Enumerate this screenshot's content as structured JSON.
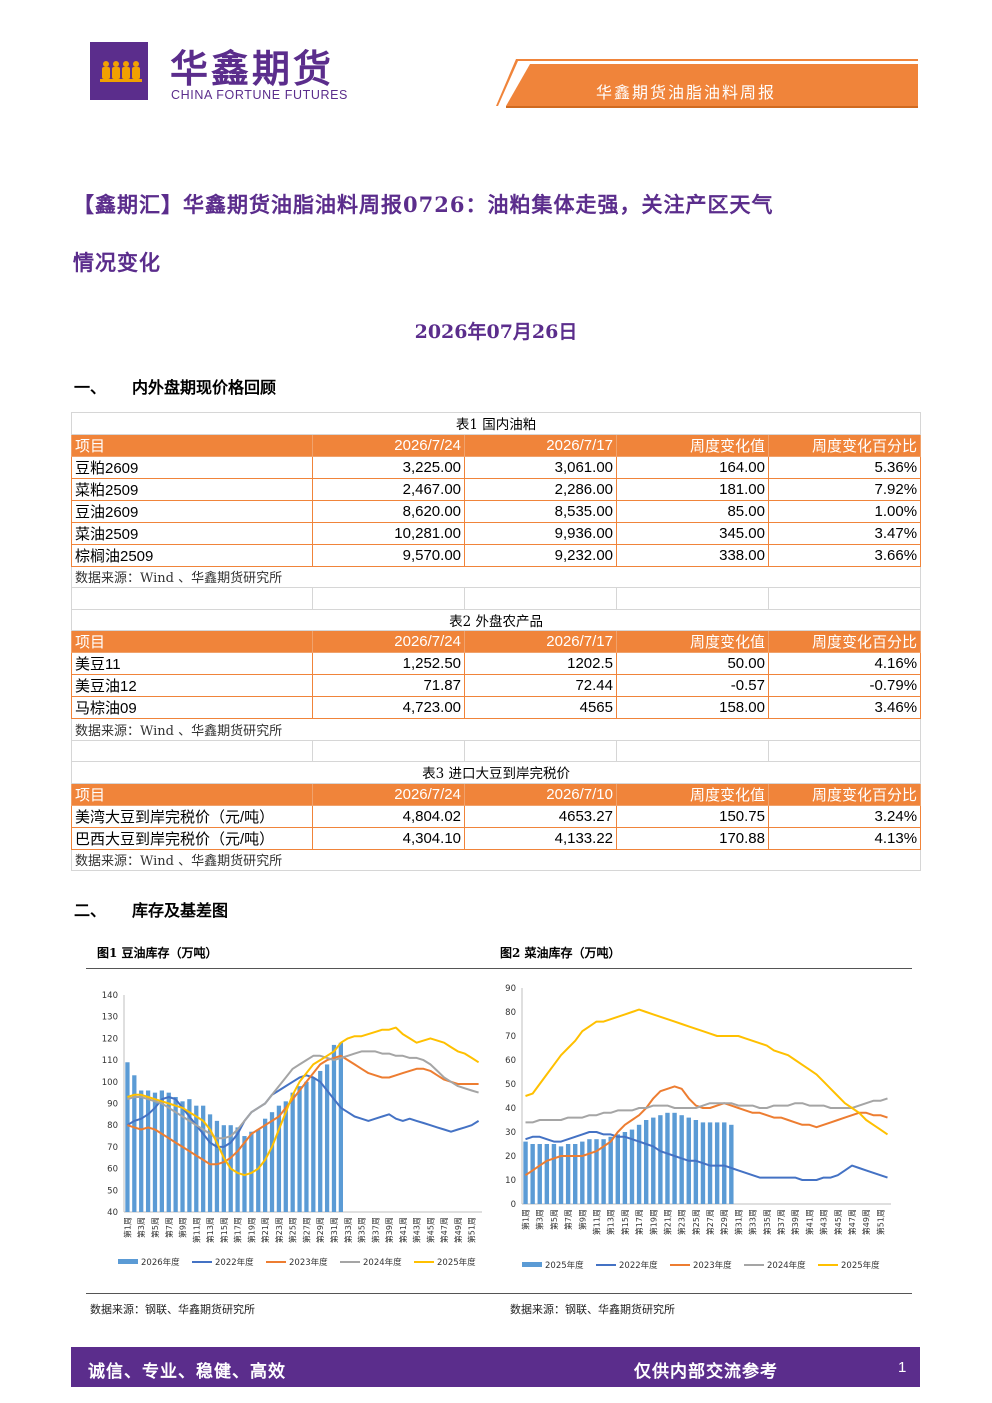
{
  "header": {
    "logo_cn": "华鑫期货",
    "logo_en": "CHINA FORTUNE FUTURES",
    "report_name": "华鑫期货油脂油料周报",
    "brand_color": "#5b2d8c",
    "accent_color": "#f0843a"
  },
  "title": {
    "line1": "【鑫期汇】华鑫期货油脂油料周报0726：油粕集体走强，关注产区天气",
    "line2": "情况变化",
    "date": "2026年07月26日"
  },
  "sections": {
    "s1": {
      "num": "一、",
      "text": "内外盘期现价格回顾"
    },
    "s2": {
      "num": "二、",
      "text": "库存及基差图"
    }
  },
  "tables": [
    {
      "caption": "表1  国内油粕",
      "headers": [
        "项目",
        "2026/7/24",
        "2026/7/17",
        "周度变化值",
        "周度变化百分比"
      ],
      "rows": [
        [
          "豆粕2609",
          "3,225.00",
          "3,061.00",
          "164.00",
          "5.36%"
        ],
        [
          "菜粕2509",
          "2,467.00",
          "2,286.00",
          "181.00",
          "7.92%"
        ],
        [
          "豆油2609",
          "8,620.00",
          "8,535.00",
          "85.00",
          "1.00%"
        ],
        [
          "菜油2509",
          "10,281.00",
          "9,936.00",
          "345.00",
          "3.47%"
        ],
        [
          "棕榈油2509",
          "9,570.00",
          "9,232.00",
          "338.00",
          "3.66%"
        ]
      ],
      "source": "数据来源：Wind 、华鑫期货研究所"
    },
    {
      "caption": "表2  外盘农产品",
      "headers": [
        "项目",
        "2026/7/24",
        "2026/7/17",
        "周度变化值",
        "周度变化百分比"
      ],
      "rows": [
        [
          "美豆11",
          "1,252.50",
          "1202.5",
          "50.00",
          "4.16%"
        ],
        [
          "美豆油12",
          "71.87",
          "72.44",
          "-0.57",
          "-0.79%"
        ],
        [
          "马棕油09",
          "4,723.00",
          "4565",
          "158.00",
          "3.46%"
        ]
      ],
      "source": "数据来源：Wind 、华鑫期货研究所"
    },
    {
      "caption": "表3  进口大豆到岸完税价",
      "headers": [
        "项目",
        "2026/7/24",
        "2026/7/10",
        "周度变化值",
        "周度变化百分比"
      ],
      "rows": [
        [
          "美湾大豆到岸完税价（元/吨）",
          "4,804.02",
          "4653.27",
          "150.75",
          "3.24%"
        ],
        [
          "巴西大豆到岸完税价（元/吨）",
          "4,304.10",
          "4,133.22",
          "170.88",
          "4.13%"
        ]
      ],
      "source": "数据来源：Wind 、华鑫期货研究所"
    }
  ],
  "figures": [
    {
      "title": "图1  豆油库存（万吨）",
      "source": "数据来源：钢联、华鑫期货研究所"
    },
    {
      "title": "图2  菜油库存（万吨）",
      "source": "数据来源：钢联、华鑫期货研究所"
    }
  ],
  "chart_data": [
    {
      "type": "line",
      "title": "图1  豆油库存（万吨）",
      "ylim": [
        40,
        140
      ],
      "yticks": [
        40,
        50,
        60,
        70,
        80,
        90,
        100,
        110,
        120,
        130,
        140
      ],
      "ytick_labels": [
        "40",
        "50",
        "60",
        "70",
        "80",
        "90",
        "100",
        "110",
        "120",
        "130",
        "140"
      ],
      "x_labels": [
        "第1周",
        "第3周",
        "第5周",
        "第7周",
        "第9周",
        "第11周",
        "第13周",
        "第15周",
        "第17周",
        "第19周",
        "第21周",
        "第23周",
        "第25周",
        "第27周",
        "第29周",
        "第31周",
        "第33周",
        "第35周",
        "第37周",
        "第39周",
        "第41周",
        "第43周",
        "第45周",
        "第47周",
        "第49周",
        "第51周"
      ],
      "weeks": 52,
      "legend_position": "bottom",
      "bar_series": {
        "name": "2026年度",
        "color": "#5b9bd5",
        "values": [
          109,
          103,
          96,
          96,
          95,
          96,
          95,
          93,
          91,
          92,
          89,
          89,
          85,
          82,
          80,
          80,
          79,
          75,
          77,
          78,
          83,
          86,
          89,
          91,
          95,
          98,
          100,
          102,
          105,
          108,
          117,
          118
        ]
      },
      "series": [
        {
          "name": "2022年度",
          "color": "#4472c4",
          "values": [
            80,
            82,
            83,
            85,
            88,
            92,
            93,
            92,
            88,
            84,
            80,
            76,
            72,
            70,
            70,
            72,
            76,
            82,
            86,
            88,
            90,
            94,
            96,
            98,
            100,
            102,
            103,
            102,
            100,
            96,
            92,
            88,
            86,
            84,
            83,
            82,
            83,
            84,
            85,
            83,
            82,
            83,
            82,
            81,
            80,
            79,
            78,
            77,
            78,
            79,
            80,
            82
          ]
        },
        {
          "name": "2023年度",
          "color": "#ed7d31",
          "values": [
            80,
            79,
            78,
            79,
            78,
            76,
            74,
            72,
            70,
            68,
            66,
            64,
            62,
            62,
            63,
            65,
            68,
            72,
            76,
            78,
            80,
            82,
            84,
            88,
            92,
            96,
            100,
            104,
            108,
            110,
            111,
            112,
            110,
            108,
            106,
            104,
            103,
            102,
            102,
            103,
            104,
            105,
            106,
            106,
            105,
            103,
            101,
            100,
            99,
            99,
            99,
            99
          ]
        },
        {
          "name": "2024年度",
          "color": "#a5a5a5",
          "values": [
            92,
            93,
            93,
            92,
            91,
            90,
            88,
            86,
            84,
            82,
            80,
            78,
            76,
            74,
            74,
            75,
            78,
            82,
            86,
            88,
            90,
            94,
            98,
            102,
            106,
            108,
            110,
            112,
            112,
            111,
            110,
            111,
            112,
            113,
            114,
            114,
            114,
            113,
            113,
            112,
            112,
            111,
            111,
            110,
            108,
            105,
            102,
            100,
            98,
            97,
            96,
            95
          ]
        },
        {
          "name": "2025年度",
          "color": "#ffc000",
          "values": [
            93,
            94,
            94,
            93,
            92,
            91,
            90,
            89,
            88,
            86,
            84,
            82,
            78,
            72,
            65,
            60,
            58,
            57,
            58,
            60,
            64,
            70,
            78,
            86,
            94,
            100,
            104,
            108,
            110,
            112,
            114,
            118,
            120,
            121,
            121,
            122,
            123,
            124,
            124,
            125,
            122,
            120,
            118,
            119,
            120,
            119,
            118,
            116,
            114,
            113,
            111,
            109
          ]
        }
      ]
    },
    {
      "type": "line",
      "title": "图2  菜油库存（万吨）",
      "ylim": [
        0,
        90
      ],
      "yticks": [
        0,
        10,
        20,
        30,
        40,
        50,
        60,
        70,
        80,
        90
      ],
      "ytick_labels": [
        "0",
        "10",
        "20",
        "30",
        "40",
        "50",
        "60",
        "70",
        "80",
        "90"
      ],
      "x_labels": [
        "第1周",
        "第3周",
        "第5周",
        "第7周",
        "第9周",
        "第11周",
        "第13周",
        "第15周",
        "第17周",
        "第19周",
        "第21周",
        "第23周",
        "第25周",
        "第27周",
        "第29周",
        "第31周",
        "第33周",
        "第35周",
        "第37周",
        "第39周",
        "第41周",
        "第43周",
        "第45周",
        "第47周",
        "第49周",
        "第51周"
      ],
      "weeks": 52,
      "legend_position": "bottom",
      "bar_series": {
        "name": "2025年度",
        "color": "#5b9bd5",
        "values": [
          26,
          25,
          25,
          25,
          25,
          24,
          25,
          25,
          26,
          27,
          27,
          27,
          28,
          29,
          30,
          31,
          33,
          35,
          36,
          37,
          38,
          38,
          37,
          36,
          35,
          34,
          34,
          34,
          34,
          33
        ]
      },
      "series": [
        {
          "name": "2022年度",
          "color": "#4472c4",
          "values": [
            27,
            28,
            28,
            27,
            26,
            26,
            27,
            28,
            29,
            30,
            30,
            29,
            29,
            28,
            28,
            27,
            26,
            25,
            24,
            22,
            21,
            20,
            19,
            18,
            18,
            17,
            16,
            16,
            16,
            15,
            14,
            13,
            12,
            11,
            11,
            11,
            11,
            11,
            11,
            10,
            10,
            10,
            11,
            11,
            12,
            14,
            16,
            15,
            14,
            13,
            12,
            11
          ]
        },
        {
          "name": "2023年度",
          "color": "#ed7d31",
          "values": [
            12,
            14,
            16,
            18,
            19,
            20,
            20,
            20,
            20,
            21,
            22,
            24,
            26,
            30,
            33,
            35,
            37,
            40,
            44,
            47,
            48,
            49,
            48,
            44,
            41,
            40,
            40,
            41,
            42,
            41,
            40,
            39,
            38,
            38,
            37,
            36,
            36,
            35,
            34,
            33,
            33,
            32,
            33,
            34,
            35,
            36,
            37,
            38,
            38,
            37,
            37,
            36
          ]
        },
        {
          "name": "2024年度",
          "color": "#a5a5a5",
          "values": [
            34,
            34,
            35,
            35,
            35,
            35,
            36,
            36,
            36,
            37,
            37,
            38,
            38,
            39,
            39,
            39,
            40,
            40,
            41,
            41,
            41,
            40,
            40,
            40,
            40,
            41,
            42,
            42,
            42,
            42,
            41,
            41,
            41,
            40,
            40,
            41,
            41,
            41,
            42,
            42,
            41,
            41,
            41,
            40,
            40,
            40,
            40,
            41,
            42,
            43,
            43,
            44
          ]
        },
        {
          "name": "2025年度",
          "color": "#ffc000",
          "values": [
            45,
            46,
            50,
            54,
            58,
            62,
            65,
            68,
            72,
            74,
            76,
            76,
            77,
            78,
            79,
            80,
            81,
            80,
            79,
            78,
            77,
            76,
            75,
            74,
            73,
            72,
            71,
            70,
            70,
            70,
            70,
            69,
            68,
            67,
            66,
            64,
            63,
            62,
            60,
            58,
            56,
            54,
            51,
            48,
            45,
            42,
            40,
            38,
            35,
            33,
            31,
            29
          ]
        }
      ]
    }
  ],
  "footer": {
    "left": "诚信、专业、稳健、高效",
    "right": "仅供内部交流参考",
    "page": "1"
  }
}
